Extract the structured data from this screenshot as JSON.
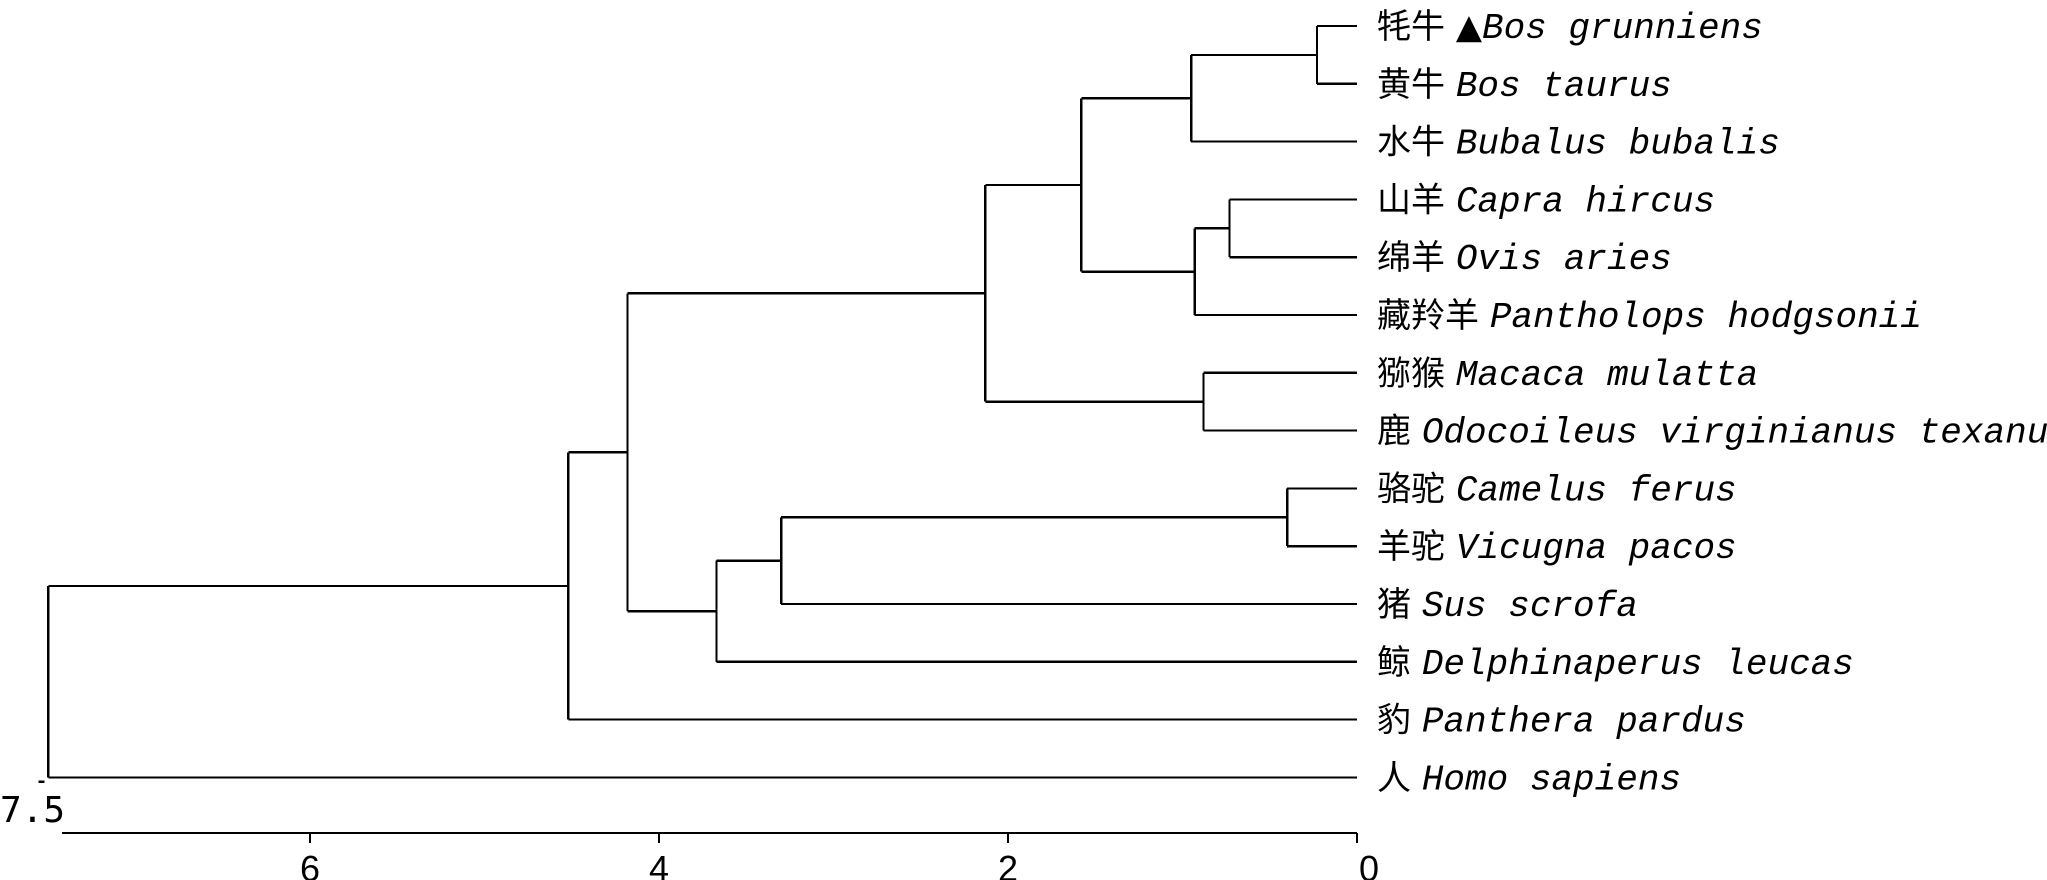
{
  "tree": {
    "scale_max": 7.5,
    "scale_max_label": "7.5",
    "axis_ticks": [
      {
        "value": 6,
        "label": "6"
      },
      {
        "value": 4,
        "label": "4"
      },
      {
        "value": 2,
        "label": "2"
      },
      {
        "value": 0,
        "label": "0"
      }
    ],
    "leaves": [
      {
        "id": "yak",
        "cn": "牦牛",
        "marker": "▲",
        "sci": "Bos grunniens"
      },
      {
        "id": "cattle",
        "cn": "黄牛",
        "sci": "Bos taurus"
      },
      {
        "id": "buffalo",
        "cn": "水牛",
        "sci": "Bubalus bubalis"
      },
      {
        "id": "goat",
        "cn": "山羊",
        "sci": "Capra hircus"
      },
      {
        "id": "sheep",
        "cn": "绵羊",
        "sci": "Ovis aries"
      },
      {
        "id": "chiru",
        "cn": "藏羚羊",
        "sci": "Pantholops hodgsonii"
      },
      {
        "id": "macaque",
        "cn": "猕猴",
        "sci": "Macaca mulatta"
      },
      {
        "id": "deer",
        "cn": "鹿",
        "sci": "Odocoileus virginianus texanus"
      },
      {
        "id": "camel",
        "cn": "骆驼",
        "sci": "Camelus ferus"
      },
      {
        "id": "alpaca",
        "cn": "羊驼",
        "sci": "Vicugna pacos"
      },
      {
        "id": "pig",
        "cn": "猪",
        "sci": "Sus scrofa"
      },
      {
        "id": "whale",
        "cn": "鲸",
        "sci": "Delphinaperus leucas"
      },
      {
        "id": "leopard",
        "cn": "豹",
        "sci": "Panthera pardus"
      },
      {
        "id": "human",
        "cn": "人",
        "sci": "Homo sapiens"
      }
    ],
    "clades": [
      {
        "id": "n_yak_cattle",
        "height": 0.23,
        "children": [
          "yak",
          "cattle"
        ]
      },
      {
        "id": "n_bovini",
        "height": 0.95,
        "children": [
          "n_yak_cattle",
          "buffalo"
        ]
      },
      {
        "id": "n_goat_sheep",
        "height": 0.73,
        "children": [
          "goat",
          "sheep"
        ]
      },
      {
        "id": "n_caprini",
        "height": 0.93,
        "children": [
          "n_goat_sheep",
          "chiru"
        ]
      },
      {
        "id": "n_bovidae",
        "height": 1.58,
        "children": [
          "n_bovini",
          "n_caprini"
        ]
      },
      {
        "id": "n_macaque_deer",
        "height": 0.88,
        "children": [
          "macaque",
          "deer"
        ]
      },
      {
        "id": "n_upper",
        "height": 2.13,
        "children": [
          "n_bovidae",
          "n_macaque_deer"
        ]
      },
      {
        "id": "n_camelid",
        "height": 0.4,
        "children": [
          "camel",
          "alpaca"
        ]
      },
      {
        "id": "n_camel_pig",
        "height": 3.3,
        "children": [
          "n_camelid",
          "pig"
        ]
      },
      {
        "id": "n_lower",
        "height": 3.67,
        "children": [
          "n_camel_pig",
          "whale"
        ]
      },
      {
        "id": "n_cetart",
        "height": 4.18,
        "children": [
          "n_upper",
          "n_lower"
        ]
      },
      {
        "id": "n_leopard",
        "height": 4.52,
        "children": [
          "n_cetart",
          "leopard"
        ]
      },
      {
        "id": "n_root",
        "height": 7.5,
        "children": [
          "n_leopard",
          "human"
        ]
      }
    ],
    "root": "n_root"
  }
}
